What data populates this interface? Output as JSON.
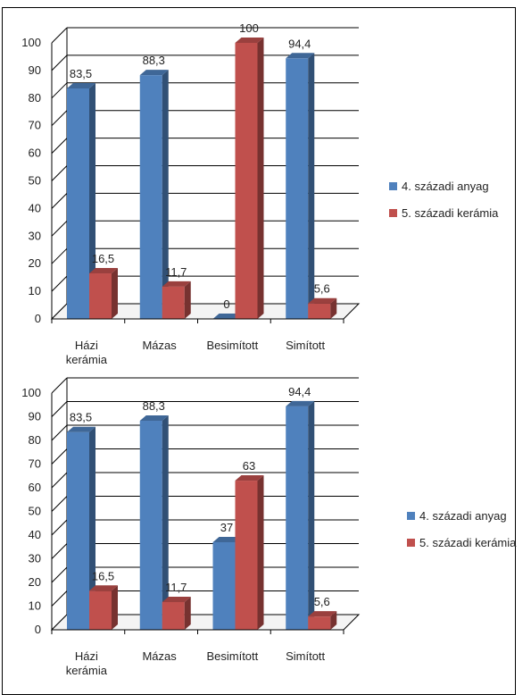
{
  "chart_data": [
    {
      "type": "bar",
      "categories": [
        [
          "Házi",
          "kerámia"
        ],
        [
          "Mázas"
        ],
        [
          "Besimított"
        ],
        [
          "Simított"
        ]
      ],
      "series": [
        {
          "name": "4. századi anyag",
          "values": [
            83.5,
            88.3,
            0,
            94.4
          ],
          "labels": [
            "83,5",
            "88,3",
            "0",
            "94,4"
          ],
          "color": "#4f81bd"
        },
        {
          "name": "5. századi kerámia",
          "values": [
            16.5,
            11.7,
            100,
            5.6
          ],
          "labels": [
            "16,5",
            "11,7",
            "100",
            "5,6"
          ],
          "color": "#c0504d"
        }
      ],
      "ylim": [
        0,
        100
      ],
      "yticks": [
        "0",
        "10",
        "20",
        "30",
        "40",
        "50",
        "60",
        "70",
        "80",
        "90",
        "100"
      ],
      "grid": true,
      "legend_position": "right",
      "style": "3d-clustered-column"
    },
    {
      "type": "bar",
      "categories": [
        [
          "Házi",
          "kerámia"
        ],
        [
          "Mázas"
        ],
        [
          "Besimított"
        ],
        [
          "Simított"
        ]
      ],
      "series": [
        {
          "name": "4. századi anyag",
          "values": [
            83.5,
            88.3,
            37,
            94.4
          ],
          "labels": [
            "83,5",
            "88,3",
            "37",
            "94,4"
          ],
          "color": "#4f81bd"
        },
        {
          "name": "5. századi kerámia",
          "values": [
            16.5,
            11.7,
            63,
            5.6
          ],
          "labels": [
            "16,5",
            "11,7",
            "63",
            "5,6"
          ],
          "color": "#c0504d"
        }
      ],
      "ylim": [
        0,
        100
      ],
      "yticks": [
        "0",
        "10",
        "20",
        "30",
        "40",
        "50",
        "60",
        "70",
        "80",
        "90",
        "100"
      ],
      "grid": true,
      "legend_position": "right",
      "style": "3d-clustered-column"
    }
  ]
}
